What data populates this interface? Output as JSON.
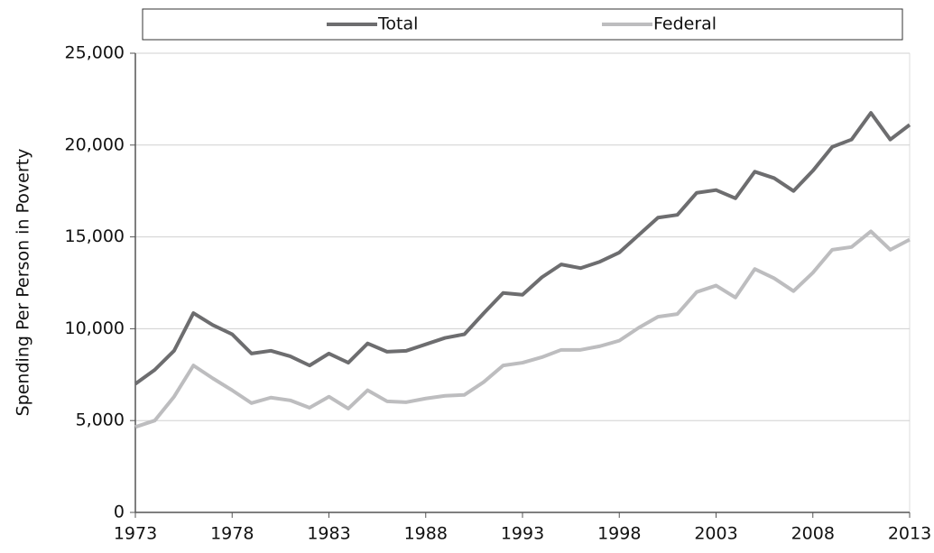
{
  "chart_data": {
    "type": "line",
    "y_label": "Spending Per Person in Poverty",
    "x": [
      1973,
      1974,
      1975,
      1976,
      1977,
      1978,
      1979,
      1980,
      1981,
      1982,
      1983,
      1984,
      1985,
      1986,
      1987,
      1988,
      1989,
      1990,
      1991,
      1992,
      1993,
      1994,
      1995,
      1996,
      1997,
      1998,
      1999,
      2000,
      2001,
      2002,
      2003,
      2004,
      2005,
      2006,
      2007,
      2008,
      2009,
      2010,
      2011,
      2012,
      2013
    ],
    "series": [
      {
        "name": "Total",
        "color": "#6d6d6f",
        "values": [
          7000,
          7760,
          8800,
          10850,
          10200,
          9700,
          8650,
          8800,
          8500,
          8000,
          8650,
          8150,
          9200,
          8750,
          8800,
          9150,
          9500,
          9700,
          10850,
          11950,
          11850,
          12800,
          13500,
          13300,
          13650,
          14150,
          15100,
          16050,
          16200,
          17400,
          17550,
          17100,
          18550,
          18200,
          17500,
          18600,
          19900,
          20300,
          21750,
          20300,
          21100
        ]
      },
      {
        "name": "Federal",
        "color": "#bdbdbf",
        "values": [
          4650,
          5000,
          6300,
          8000,
          7300,
          6650,
          5950,
          6250,
          6100,
          5700,
          6300,
          5650,
          6650,
          6050,
          6000,
          6200,
          6350,
          6400,
          7100,
          8000,
          8150,
          8450,
          8850,
          8850,
          9050,
          9350,
          10050,
          10650,
          10800,
          12000,
          12350,
          11700,
          13250,
          12750,
          12050,
          13050,
          14300,
          14450,
          15300,
          14300,
          14850
        ]
      }
    ],
    "xlim": [
      1973,
      2013
    ],
    "xticks": [
      1973,
      1978,
      1983,
      1988,
      1993,
      1998,
      2003,
      2008,
      2013
    ],
    "ylim": [
      0,
      25000
    ],
    "yticks": [
      0,
      {
        "value": 5000,
        "label": "5,000"
      },
      {
        "value": 10000,
        "label": "10,000"
      },
      {
        "value": 15000,
        "label": "15,000"
      },
      {
        "value": 20000,
        "label": "20,000"
      },
      {
        "value": 25000,
        "label": "25,000"
      }
    ],
    "grid": true,
    "legend": "top"
  }
}
